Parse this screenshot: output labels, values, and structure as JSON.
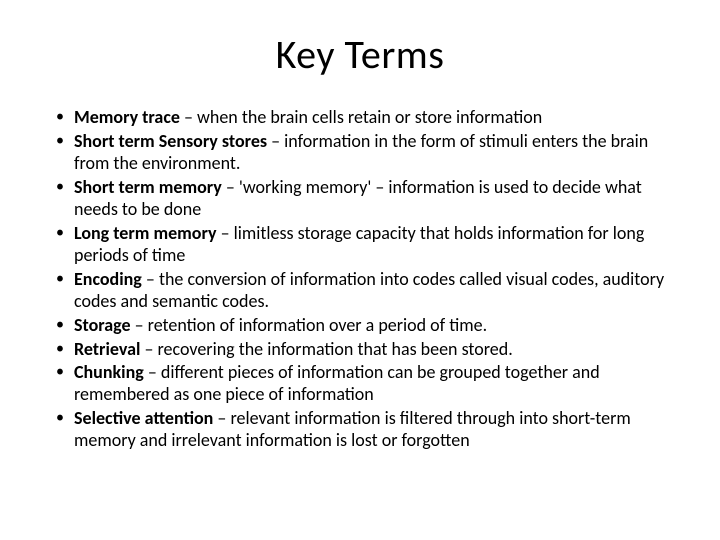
{
  "title": "Key Terms",
  "title_fontsize": 40,
  "body_fontsize": 18,
  "text_color": "#000000",
  "background_color": "#ffffff",
  "font_family": "Calibri",
  "bullets": [
    {
      "term": "Memory trace",
      "definition": " – when the brain cells retain or store information"
    },
    {
      "term": "Short term Sensory stores",
      "definition": " – information in the form of stimuli enters the brain from the environment."
    },
    {
      "term": "Short term memory",
      "definition": " – 'working memory' – information is used to decide what needs to be done"
    },
    {
      "term": "Long term memory",
      "definition": " – limitless storage capacity that holds information for long periods of time"
    },
    {
      "term": "Encoding",
      "definition": " – the conversion of information into codes called visual codes, auditory codes and semantic codes."
    },
    {
      "term": "Storage",
      "definition": " – retention of information over a period of time."
    },
    {
      "term": "Retrieval",
      "definition": " – recovering the information that has been stored."
    },
    {
      "term": "Chunking",
      "definition": " – different pieces of information can be grouped together and remembered as one piece of information"
    },
    {
      "term": "Selective attention",
      "definition": " – relevant information is filtered through into short-term memory and irrelevant information is lost or forgotten"
    }
  ]
}
